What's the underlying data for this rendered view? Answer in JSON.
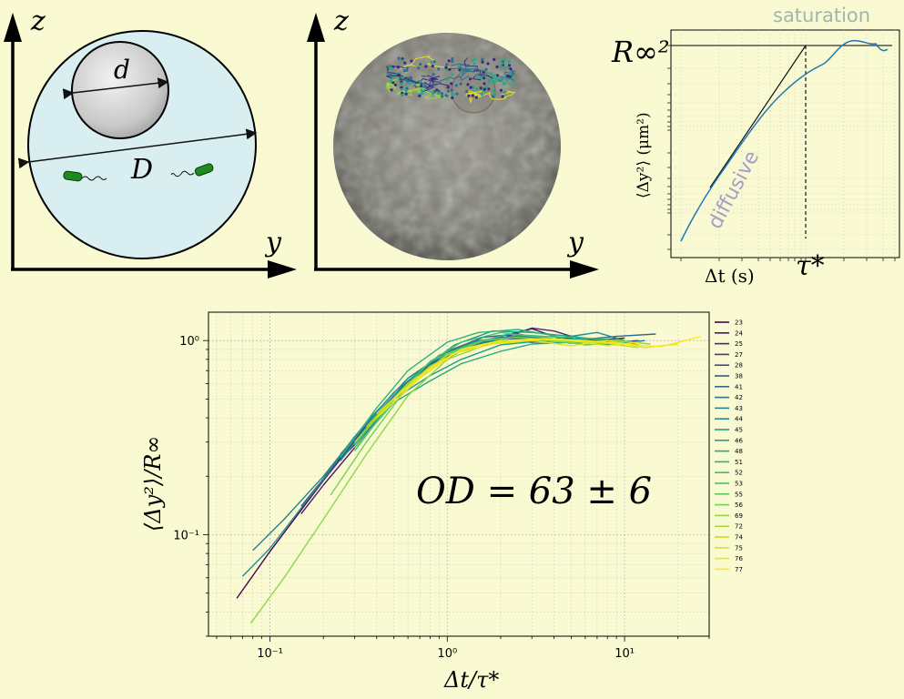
{
  "panels": {
    "sketch": {
      "axis_z": "z",
      "axis_y": "y",
      "small_diameter": "d",
      "large_diameter": "D",
      "colors": {
        "sphere": "#d9eef0",
        "particle": "#c8c8c8",
        "bacteria": "#1f8a1f"
      }
    },
    "microscopy": {
      "axis_z": "z",
      "axis_y": "y",
      "colors": {
        "sphere": "#7d7d72",
        "tracks": [
          "#3b2883",
          "#2f6b8e",
          "#22a884",
          "#a0da39",
          "#e8e419"
        ]
      }
    },
    "schematic_msd": {
      "saturation_label": "saturation",
      "diffusive_label": "diffusive",
      "plateau_label": "R∞²",
      "tau_label": "τ*",
      "ylabel": "⟨Δy²⟩ (μm²)",
      "xlabel": "Δt (s)",
      "colors": {
        "curve": "#1f77b4",
        "saturation_text": "#9fb5b5",
        "diffusive_text": "#a89cc8"
      }
    }
  },
  "chart_data": {
    "type": "line",
    "scale": {
      "x": "log",
      "y": "log"
    },
    "xlim": [
      0.045,
      30
    ],
    "ylim": [
      0.03,
      1.4
    ],
    "xlabel": "Δt/τ*",
    "ylabel": "⟨Δy²⟩/R∞",
    "annotation": "OD = 63 ± 6",
    "grid": true,
    "legend_position": "right",
    "xticks": [
      {
        "value": 0.1,
        "label": "10⁻¹"
      },
      {
        "value": 1,
        "label": "10⁰"
      },
      {
        "value": 10,
        "label": "10¹"
      }
    ],
    "yticks": [
      {
        "value": 0.1,
        "label": "10⁻¹"
      },
      {
        "value": 1,
        "label": "10⁰"
      }
    ],
    "series": [
      {
        "name": "23",
        "color": "#440154",
        "x": [
          0.065,
          0.1,
          0.2,
          0.4,
          0.7,
          1.0,
          1.5,
          2.0,
          3.0,
          5.0,
          8.0,
          12.0
        ],
        "y": [
          0.047,
          0.082,
          0.19,
          0.42,
          0.7,
          0.88,
          0.98,
          1.0,
          0.98,
          1.0,
          0.96,
          0.98
        ]
      },
      {
        "name": "24",
        "color": "#47176a",
        "x": [
          0.15,
          0.2,
          0.3,
          0.5,
          0.8,
          1.2,
          2.0,
          3.0,
          4.0,
          6.0,
          10.0
        ],
        "y": [
          0.128,
          0.18,
          0.28,
          0.5,
          0.73,
          0.92,
          1.05,
          1.15,
          1.05,
          1.0,
          1.03
        ]
      },
      {
        "name": "25",
        "color": "#482677",
        "x": [
          0.2,
          0.3,
          0.5,
          0.8,
          1.2,
          2.0,
          3.0,
          4.0,
          6.0,
          10.0
        ],
        "y": [
          0.2,
          0.29,
          0.5,
          0.72,
          0.9,
          1.02,
          1.16,
          1.12,
          1.0,
          0.98
        ]
      },
      {
        "name": "27",
        "color": "#453581",
        "x": [
          0.18,
          0.3,
          0.5,
          0.8,
          1.2,
          2.0,
          3.0,
          5.0,
          8.0
        ],
        "y": [
          0.17,
          0.3,
          0.52,
          0.75,
          0.92,
          1.02,
          1.03,
          0.97,
          0.99
        ]
      },
      {
        "name": "28",
        "color": "#3e4989",
        "x": [
          0.15,
          0.25,
          0.4,
          0.7,
          1.0,
          1.5,
          2.5,
          4.0,
          7.0,
          12.0
        ],
        "y": [
          0.14,
          0.25,
          0.42,
          0.68,
          0.85,
          0.98,
          1.05,
          1.0,
          0.97,
          1.0
        ]
      },
      {
        "name": "38",
        "color": "#38588c",
        "x": [
          0.25,
          0.4,
          0.6,
          1.0,
          1.6,
          2.5,
          4.0,
          7.0,
          12.0
        ],
        "y": [
          0.26,
          0.42,
          0.62,
          0.88,
          1.04,
          1.08,
          1.0,
          1.02,
          0.95
        ]
      },
      {
        "name": "41",
        "color": "#31688e",
        "x": [
          0.3,
          0.5,
          0.8,
          1.2,
          2.0,
          3.0,
          5.0,
          9.0,
          15.0
        ],
        "y": [
          0.3,
          0.52,
          0.74,
          0.92,
          1.04,
          1.02,
          1.0,
          1.05,
          1.08
        ]
      },
      {
        "name": "42",
        "color": "#2c728e",
        "x": [
          0.3,
          0.5,
          0.8,
          1.3,
          2.0,
          3.0,
          5.0,
          8.0,
          13.0
        ],
        "y": [
          0.28,
          0.5,
          0.76,
          0.95,
          1.0,
          0.98,
          1.02,
          0.95,
          1.0
        ]
      },
      {
        "name": "43",
        "color": "#26828e",
        "x": [
          0.08,
          0.12,
          0.2,
          0.35,
          0.6,
          1.0,
          1.8,
          3.0,
          5.0,
          9.0
        ],
        "y": [
          0.083,
          0.12,
          0.2,
          0.38,
          0.64,
          0.88,
          1.0,
          1.02,
          0.98,
          0.97
        ]
      },
      {
        "name": "44",
        "color": "#21918c",
        "x": [
          0.07,
          0.1,
          0.18,
          0.3,
          0.5,
          0.9,
          1.5,
          2.5,
          4.0,
          7.0,
          10.0
        ],
        "y": [
          0.061,
          0.085,
          0.17,
          0.32,
          0.54,
          0.84,
          1.0,
          1.06,
          1.02,
          1.1,
          1.0
        ]
      },
      {
        "name": "45",
        "color": "#1f9a8a",
        "x": [
          0.3,
          0.5,
          0.8,
          1.2,
          2.0,
          3.5,
          6.0,
          10.0
        ],
        "y": [
          0.3,
          0.5,
          0.66,
          0.8,
          0.95,
          1.0,
          1.02,
          0.98
        ]
      },
      {
        "name": "46",
        "color": "#1fa187",
        "x": [
          0.25,
          0.4,
          0.7,
          1.1,
          1.8,
          3.0,
          5.0,
          8.0
        ],
        "y": [
          0.24,
          0.42,
          0.7,
          0.95,
          1.12,
          1.1,
          1.05,
          1.0
        ]
      },
      {
        "name": "48",
        "color": "#22a884",
        "x": [
          0.35,
          0.5,
          0.8,
          1.2,
          2.0,
          3.0,
          5.0,
          8.0,
          12.0
        ],
        "y": [
          0.33,
          0.48,
          0.62,
          0.76,
          0.88,
          0.96,
          0.98,
          0.97,
          0.98
        ]
      },
      {
        "name": "51",
        "color": "#2db27d",
        "x": [
          0.25,
          0.4,
          0.6,
          1.0,
          1.5,
          2.5,
          4.0,
          6.0,
          9.0
        ],
        "y": [
          0.25,
          0.45,
          0.7,
          0.98,
          1.1,
          1.14,
          1.06,
          0.95,
          0.98
        ]
      },
      {
        "name": "52",
        "color": "#3bbb75",
        "x": [
          0.3,
          0.5,
          0.8,
          1.3,
          2.2,
          3.5,
          6.0,
          10.0
        ],
        "y": [
          0.29,
          0.5,
          0.78,
          0.95,
          1.08,
          1.05,
          1.03,
          1.0
        ]
      },
      {
        "name": "53",
        "color": "#4ac16d",
        "x": [
          0.3,
          0.5,
          0.8,
          1.2,
          2.0,
          3.0,
          5.0,
          8.0
        ],
        "y": [
          0.27,
          0.5,
          0.78,
          0.98,
          1.1,
          1.05,
          1.0,
          0.95
        ]
      },
      {
        "name": "55",
        "color": "#5ec962",
        "x": [
          0.3,
          0.5,
          0.8,
          1.3,
          2.0,
          3.5,
          6.0,
          10.0
        ],
        "y": [
          0.28,
          0.48,
          0.72,
          0.92,
          1.0,
          1.02,
          0.95,
          0.98
        ]
      },
      {
        "name": "56",
        "color": "#75d054",
        "x": [
          0.22,
          0.35,
          0.6,
          1.0,
          1.6,
          2.5,
          4.0,
          7.0,
          11.0
        ],
        "y": [
          0.16,
          0.3,
          0.58,
          0.85,
          1.0,
          1.04,
          1.0,
          0.97,
          0.99
        ]
      },
      {
        "name": "69",
        "color": "#8fd744",
        "x": [
          0.078,
          0.12,
          0.2,
          0.35,
          0.6,
          1.0,
          1.7,
          3.0,
          5.0,
          9.0,
          14.0
        ],
        "y": [
          0.035,
          0.06,
          0.12,
          0.26,
          0.52,
          0.8,
          0.96,
          1.0,
          0.98,
          1.0,
          0.96
        ]
      },
      {
        "name": "72",
        "color": "#a8db34",
        "x": [
          0.3,
          0.5,
          0.8,
          1.3,
          2.0,
          3.5,
          6.0,
          10.0
        ],
        "y": [
          0.3,
          0.5,
          0.74,
          0.92,
          1.0,
          1.02,
          1.0,
          0.95
        ]
      },
      {
        "name": "74",
        "color": "#c2df23",
        "x": [
          0.35,
          0.6,
          1.0,
          1.6,
          2.5,
          4.0,
          7.0,
          12.0
        ],
        "y": [
          0.36,
          0.6,
          0.84,
          0.96,
          1.0,
          1.02,
          0.98,
          0.92
        ]
      },
      {
        "name": "75",
        "color": "#dde318",
        "x": [
          0.4,
          0.7,
          1.1,
          1.8,
          3.0,
          5.0,
          8.0,
          13.0,
          20.0
        ],
        "y": [
          0.42,
          0.66,
          0.86,
          0.96,
          1.0,
          0.94,
          1.0,
          0.92,
          0.96
        ]
      },
      {
        "name": "76",
        "color": "#f0e51c",
        "x": [
          0.4,
          0.7,
          1.1,
          1.8,
          3.0,
          5.0,
          8.0,
          12.0
        ],
        "y": [
          0.4,
          0.64,
          0.86,
          0.96,
          1.02,
          1.0,
          0.94,
          0.98
        ]
      },
      {
        "name": "77",
        "color": "#fde725",
        "x": [
          0.5,
          0.8,
          1.2,
          2.0,
          3.5,
          6.0,
          10.0,
          16.0,
          22.0,
          27.0
        ],
        "y": [
          0.5,
          0.72,
          0.9,
          1.0,
          1.02,
          1.0,
          0.96,
          0.93,
          1.0,
          1.05
        ]
      }
    ]
  }
}
